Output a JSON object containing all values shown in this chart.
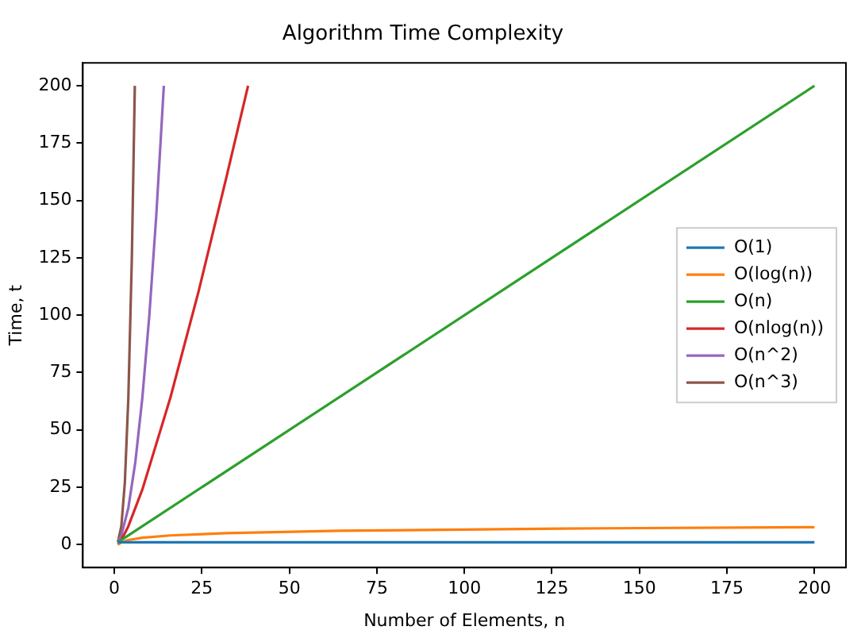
{
  "chart_data": {
    "type": "line",
    "title": "Algorithm Time Complexity",
    "xlabel": "Number of Elements, n",
    "ylabel": "Time, t",
    "xlim": [
      -9,
      209
    ],
    "xticks": [
      0,
      25,
      50,
      75,
      100,
      125,
      150,
      175,
      200
    ],
    "ylim": [
      -10,
      210
    ],
    "yticks": [
      0,
      25,
      50,
      75,
      100,
      125,
      150,
      175,
      200
    ],
    "grid": false,
    "legend": "right",
    "marker": "none",
    "line_style": "solid",
    "series": [
      {
        "name": "O(1)",
        "color": "#1f77b4",
        "x": [
          1,
          200
        ],
        "values": [
          1,
          1
        ]
      },
      {
        "name": "O(log(n))",
        "color": "#ff7f0e",
        "x": [
          1,
          2,
          4,
          8,
          16,
          32,
          64,
          128,
          200
        ],
        "values": [
          0,
          1,
          2,
          3,
          4,
          5,
          6,
          7,
          7.6
        ]
      },
      {
        "name": "O(n)",
        "color": "#2ca02c",
        "x": [
          1,
          200
        ],
        "values": [
          1,
          200
        ]
      },
      {
        "name": "O(nlog(n))",
        "color": "#d62728",
        "x": [
          1,
          2,
          4,
          8,
          16,
          24,
          32,
          38.2
        ],
        "values": [
          0,
          2,
          8,
          24,
          64,
          110,
          160,
          200
        ]
      },
      {
        "name": "O(n^2)",
        "color": "#9467bd",
        "x": [
          1,
          2,
          4,
          6,
          8,
          10,
          12,
          14.14
        ],
        "values": [
          1,
          4,
          16,
          36,
          64,
          100,
          144,
          200
        ]
      },
      {
        "name": "O(n^3)",
        "color": "#8c564b",
        "x": [
          1,
          2,
          3,
          4,
          5,
          5.85
        ],
        "values": [
          1,
          8,
          27,
          64,
          125,
          200
        ]
      }
    ]
  }
}
